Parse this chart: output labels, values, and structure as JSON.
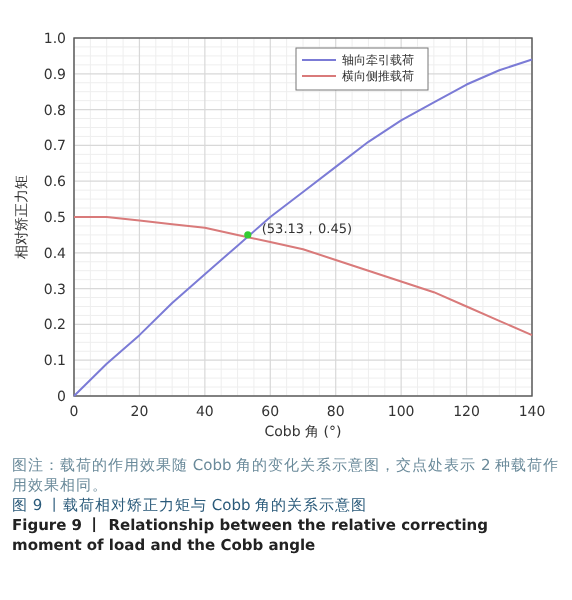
{
  "chart_data": {
    "type": "line",
    "xlabel": "Cobb 角 (°)",
    "ylabel": "相对矫正力矩",
    "x": [
      0,
      10,
      20,
      30,
      40,
      50,
      60,
      70,
      80,
      90,
      100,
      110,
      120,
      130,
      140
    ],
    "series": [
      {
        "name": "轴向牵引载荷",
        "color": "#7b7bd6",
        "values": [
          0,
          0.09,
          0.17,
          0.26,
          0.34,
          0.42,
          0.5,
          0.57,
          0.64,
          0.71,
          0.77,
          0.82,
          0.87,
          0.91,
          0.94
        ]
      },
      {
        "name": "横向侧推载荷",
        "color": "#d97a7a",
        "values": [
          0.5,
          0.5,
          0.49,
          0.48,
          0.47,
          0.45,
          0.43,
          0.41,
          0.38,
          0.35,
          0.32,
          0.29,
          0.25,
          0.21,
          0.17
        ]
      },
      {
        "type": "scatter",
        "color": "#33cc33",
        "x": [
          53.13
        ],
        "values": [
          0.45
        ]
      }
    ],
    "xlim": [
      0,
      140
    ],
    "xticks": [
      0,
      20,
      40,
      60,
      80,
      100,
      120,
      140
    ],
    "ylim": [
      0,
      1
    ],
    "yticks": [
      0,
      0.1,
      0.2,
      0.3,
      0.4,
      0.5,
      0.6,
      0.7,
      0.8,
      0.9,
      {
        "value": 1,
        "label": "1.0"
      }
    ],
    "grid": true,
    "legend": "top right",
    "annotations": [
      {
        "text": "(53.13，0.45)",
        "x": 53.13,
        "y": 0.45
      },
      "图注：载荷的作用效果随 Cobb 角的变化关系示意图，交点处表示 2 种载荷作用效果相同。",
      "图 9 丨载荷相对矫正力矩与 Cobb 角的关系示意图",
      "Figure 9 丨 Relationship between the relative correcting moment of load and the Cobb angle"
    ]
  }
}
